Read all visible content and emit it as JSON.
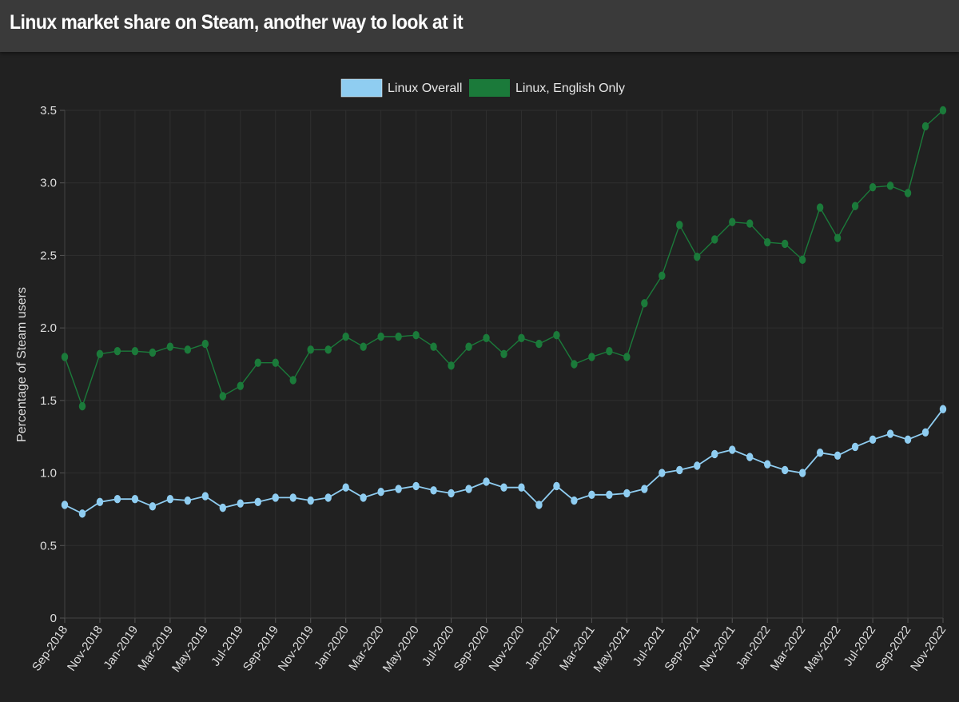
{
  "header": {
    "title": "Linux market share on Steam, another way to look at it"
  },
  "colors": {
    "background": "#212121",
    "header_background": "#3a3a3a",
    "linux_overall": "#8fcdf1",
    "linux_english_only": "#1b7a3a",
    "gridline": "#2f2f2f"
  },
  "chart_data": {
    "type": "line",
    "ylabel": "Percentage of Steam users",
    "xlabel": "",
    "ylim": [
      0,
      3.5
    ],
    "yticks": [
      "0",
      "0.5",
      "1.0",
      "1.5",
      "2.0",
      "2.5",
      "3.0",
      "3.5"
    ],
    "legend_position": "top-center",
    "grid": true,
    "categories": [
      "Sep-2018",
      "Oct-2018",
      "Nov-2018",
      "Dec-2018",
      "Jan-2019",
      "Feb-2019",
      "Mar-2019",
      "Apr-2019",
      "May-2019",
      "Jun-2019",
      "Jul-2019",
      "Aug-2019",
      "Sep-2019",
      "Oct-2019",
      "Nov-2019",
      "Dec-2019",
      "Jan-2020",
      "Feb-2020",
      "Mar-2020",
      "Apr-2020",
      "May-2020",
      "Jun-2020",
      "Jul-2020",
      "Aug-2020",
      "Sep-2020",
      "Oct-2020",
      "Nov-2020",
      "Dec-2020",
      "Jan-2021",
      "Feb-2021",
      "Mar-2021",
      "Apr-2021",
      "May-2021",
      "Jun-2021",
      "Jul-2021",
      "Aug-2021",
      "Sep-2021",
      "Oct-2021",
      "Nov-2021",
      "Dec-2021",
      "Jan-2022",
      "Feb-2022",
      "Mar-2022",
      "Apr-2022",
      "May-2022",
      "Jun-2022",
      "Jul-2022",
      "Aug-2022",
      "Sep-2022",
      "Oct-2022",
      "Nov-2022"
    ],
    "xticks": [
      "Sep-2018",
      "Nov-2018",
      "Jan-2019",
      "Mar-2019",
      "May-2019",
      "Jul-2019",
      "Sep-2019",
      "Nov-2019",
      "Jan-2020",
      "Mar-2020",
      "May-2020",
      "Jul-2020",
      "Sep-2020",
      "Nov-2020",
      "Jan-2021",
      "Mar-2021",
      "May-2021",
      "Jul-2021",
      "Sep-2021",
      "Nov-2021",
      "Jan-2022",
      "Mar-2022",
      "May-2022",
      "Jul-2022",
      "Sep-2022",
      "Nov-2022"
    ],
    "series": [
      {
        "name": "Linux Overall",
        "color": "#8fcdf1",
        "values": [
          0.78,
          0.72,
          0.8,
          0.82,
          0.82,
          0.77,
          0.82,
          0.81,
          0.84,
          0.76,
          0.79,
          0.8,
          0.83,
          0.83,
          0.81,
          0.83,
          0.9,
          0.83,
          0.87,
          0.89,
          0.91,
          0.88,
          0.86,
          0.89,
          0.94,
          0.9,
          0.9,
          0.78,
          0.91,
          0.81,
          0.85,
          0.85,
          0.86,
          0.89,
          1.0,
          1.02,
          1.05,
          1.13,
          1.16,
          1.11,
          1.06,
          1.02,
          1.0,
          1.14,
          1.12,
          1.18,
          1.23,
          1.27,
          1.23,
          1.28,
          1.44
        ]
      },
      {
        "name": "Linux, English Only",
        "color": "#1b7a3a",
        "values": [
          1.8,
          1.46,
          1.82,
          1.84,
          1.84,
          1.83,
          1.87,
          1.85,
          1.89,
          1.53,
          1.6,
          1.76,
          1.76,
          1.64,
          1.85,
          1.85,
          1.94,
          1.87,
          1.94,
          1.94,
          1.95,
          1.87,
          1.74,
          1.87,
          1.93,
          1.82,
          1.93,
          1.89,
          1.95,
          1.75,
          1.8,
          1.84,
          1.8,
          2.17,
          2.36,
          2.71,
          2.49,
          2.61,
          2.73,
          2.72,
          2.59,
          2.58,
          2.47,
          2.83,
          2.62,
          2.84,
          2.97,
          2.98,
          2.93,
          3.39,
          3.5
        ]
      }
    ]
  }
}
